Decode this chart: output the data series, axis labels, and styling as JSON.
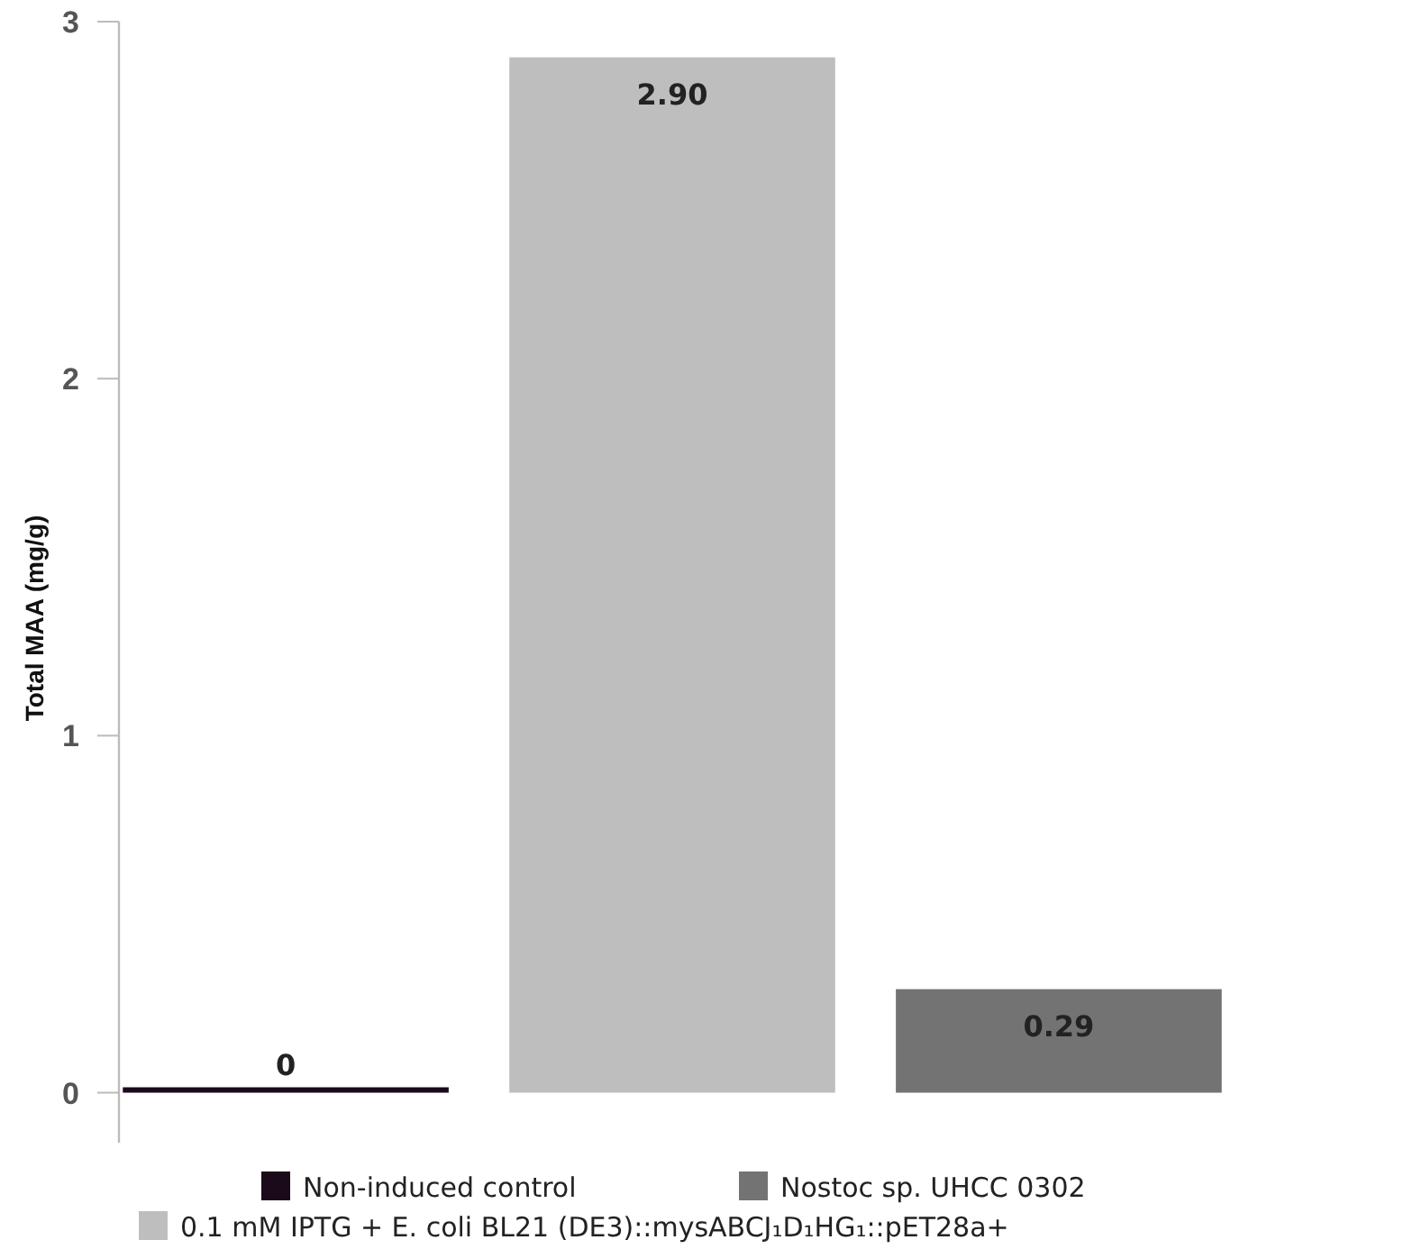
{
  "chart_data": {
    "type": "bar",
    "ylabel": "Total MAA (mg/g)",
    "categories": [
      null
    ],
    "series": [
      {
        "name": "Non-induced control",
        "color": "#1a0a1a",
        "values": [
          0
        ],
        "value_labels": [
          "0"
        ]
      },
      {
        "name": "0.1 mM IPTG + E. coli BL21 (DE3)::mysABCJ₁D₁HG₁::pET28a+",
        "color": "#bebebe",
        "values": [
          2.9
        ],
        "value_labels": [
          "2.90"
        ]
      },
      {
        "name": "Nostoc sp. UHCC 0302",
        "color": "#737373",
        "values": [
          0.29
        ],
        "value_labels": [
          "0.29"
        ]
      }
    ],
    "ylim": [
      -0.14,
      3
    ],
    "yticks": [
      0,
      1,
      2,
      3
    ],
    "grid": false,
    "legend": "bottom"
  }
}
